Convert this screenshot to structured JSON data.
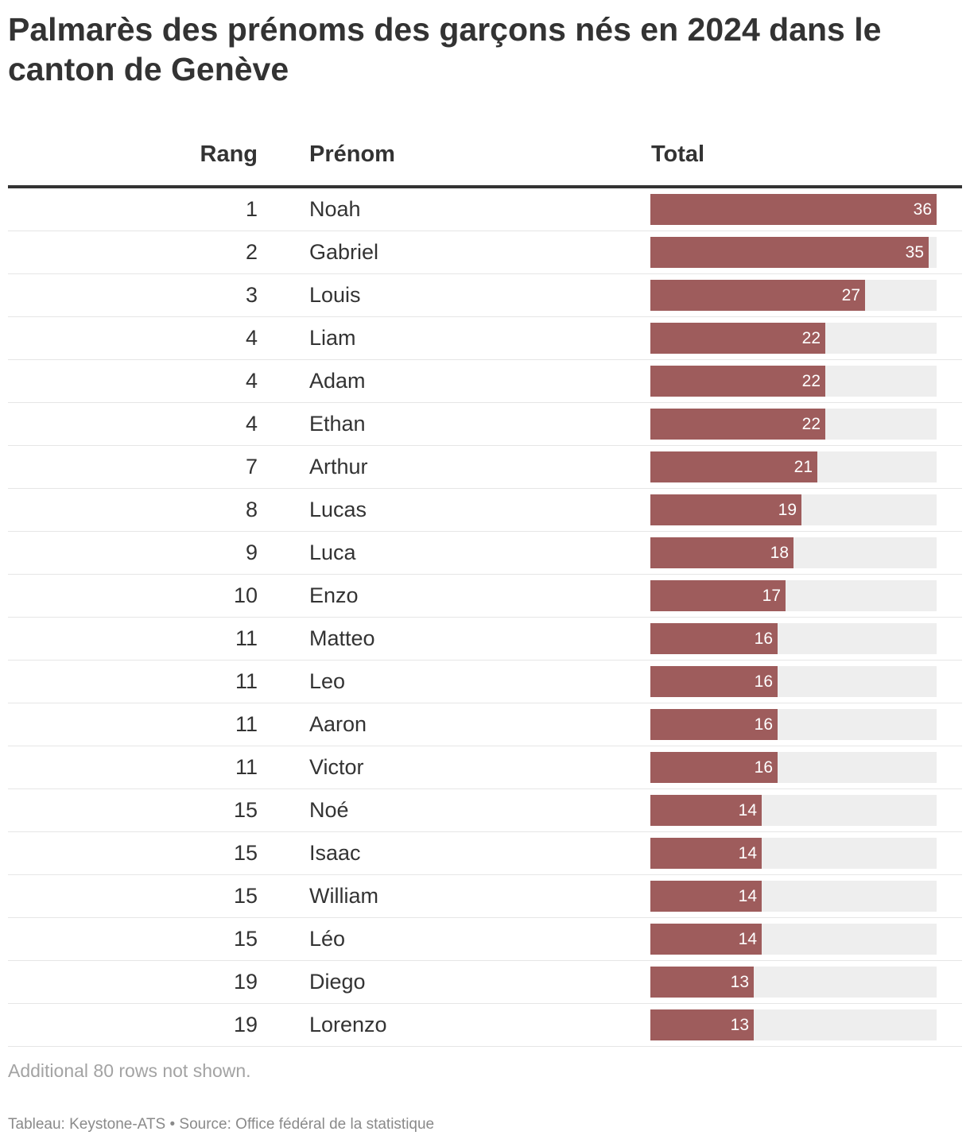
{
  "title": "Palmarès des prénoms des garçons nés en 2024 dans le canton de Genève",
  "columns": {
    "rank": "Rang",
    "name": "Prénom",
    "total": "Total"
  },
  "colors": {
    "bar": "#9e5c5c",
    "track": "#eeeeee"
  },
  "chart_data": {
    "type": "table",
    "title": "Palmarès des prénoms des garçons nés en 2024 dans le canton de Genève",
    "columns": [
      "Rang",
      "Prénom",
      "Total"
    ],
    "max_total": 36,
    "rows": [
      {
        "rank": "1",
        "name": "Noah",
        "total": 36
      },
      {
        "rank": "2",
        "name": "Gabriel",
        "total": 35
      },
      {
        "rank": "3",
        "name": "Louis",
        "total": 27
      },
      {
        "rank": "4",
        "name": "Liam",
        "total": 22
      },
      {
        "rank": "4",
        "name": "Adam",
        "total": 22
      },
      {
        "rank": "4",
        "name": "Ethan",
        "total": 22
      },
      {
        "rank": "7",
        "name": "Arthur",
        "total": 21
      },
      {
        "rank": "8",
        "name": "Lucas",
        "total": 19
      },
      {
        "rank": "9",
        "name": "Luca",
        "total": 18
      },
      {
        "rank": "10",
        "name": "Enzo",
        "total": 17
      },
      {
        "rank": "11",
        "name": "Matteo",
        "total": 16
      },
      {
        "rank": "11",
        "name": "Leo",
        "total": 16
      },
      {
        "rank": "11",
        "name": "Aaron",
        "total": 16
      },
      {
        "rank": "11",
        "name": "Victor",
        "total": 16
      },
      {
        "rank": "15",
        "name": "Noé",
        "total": 14
      },
      {
        "rank": "15",
        "name": "Isaac",
        "total": 14
      },
      {
        "rank": "15",
        "name": "William",
        "total": 14
      },
      {
        "rank": "15",
        "name": "Léo",
        "total": 14
      },
      {
        "rank": "19",
        "name": "Diego",
        "total": 13
      },
      {
        "rank": "19",
        "name": "Lorenzo",
        "total": 13
      }
    ]
  },
  "note": "Additional 80 rows not shown.",
  "source": "Tableau: Keystone-ATS • Source: Office fédéral de la statistique"
}
